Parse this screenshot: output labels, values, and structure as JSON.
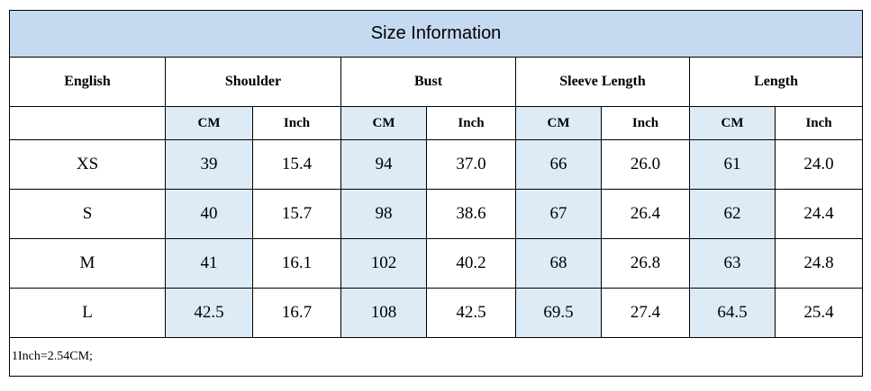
{
  "title": "Size Information",
  "header": [
    "English",
    "Shoulder",
    "Bust",
    "Sleeve Length",
    "Length"
  ],
  "subheader": [
    "CM",
    "Inch",
    "CM",
    "Inch",
    "CM",
    "Inch",
    "CM",
    "Inch"
  ],
  "rows": [
    {
      "size": "XS",
      "values": [
        "39",
        "15.4",
        "94",
        "37.0",
        "66",
        "26.0",
        "61",
        "24.0"
      ]
    },
    {
      "size": "S",
      "values": [
        "40",
        "15.7",
        "98",
        "38.6",
        "67",
        "26.4",
        "62",
        "24.4"
      ]
    },
    {
      "size": "M",
      "values": [
        "41",
        "16.1",
        "102",
        "40.2",
        "68",
        "26.8",
        "63",
        "24.8"
      ]
    },
    {
      "size": "L",
      "values": [
        "42.5",
        "16.7",
        "108",
        "42.5",
        "69.5",
        "27.4",
        "64.5",
        "25.4"
      ]
    }
  ],
  "note": "1Inch=2.54CM;"
}
